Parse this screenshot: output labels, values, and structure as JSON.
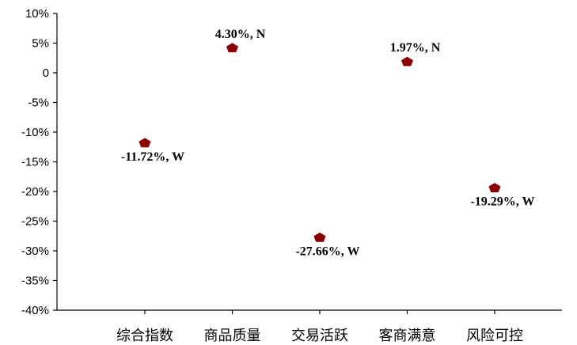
{
  "chart_data": {
    "type": "scatter",
    "categories": [
      "综合指数",
      "商品质量",
      "交易活跃",
      "客商满意",
      "风险可控"
    ],
    "values": [
      -11.72,
      4.3,
      -27.66,
      1.97,
      -19.29
    ],
    "data_labels": [
      "-11.72%, W",
      "4.30%, N",
      "-27.66%, W",
      "1.97%, N",
      "-19.29%, W"
    ],
    "label_positions": [
      "below",
      "above",
      "below",
      "above",
      "below"
    ],
    "ylim": [
      -40,
      10
    ],
    "yticks": [
      10,
      5,
      0,
      -5,
      -10,
      -15,
      -20,
      -25,
      -30,
      -35,
      -40
    ],
    "ytick_labels": [
      "10%",
      "5%",
      "0",
      "-5%",
      "-10%",
      "-15%",
      "-20%",
      "-25%",
      "-30%",
      "-35%",
      "-40%"
    ],
    "marker": "pentagon",
    "marker_color": "#8b0000",
    "grid": false
  }
}
